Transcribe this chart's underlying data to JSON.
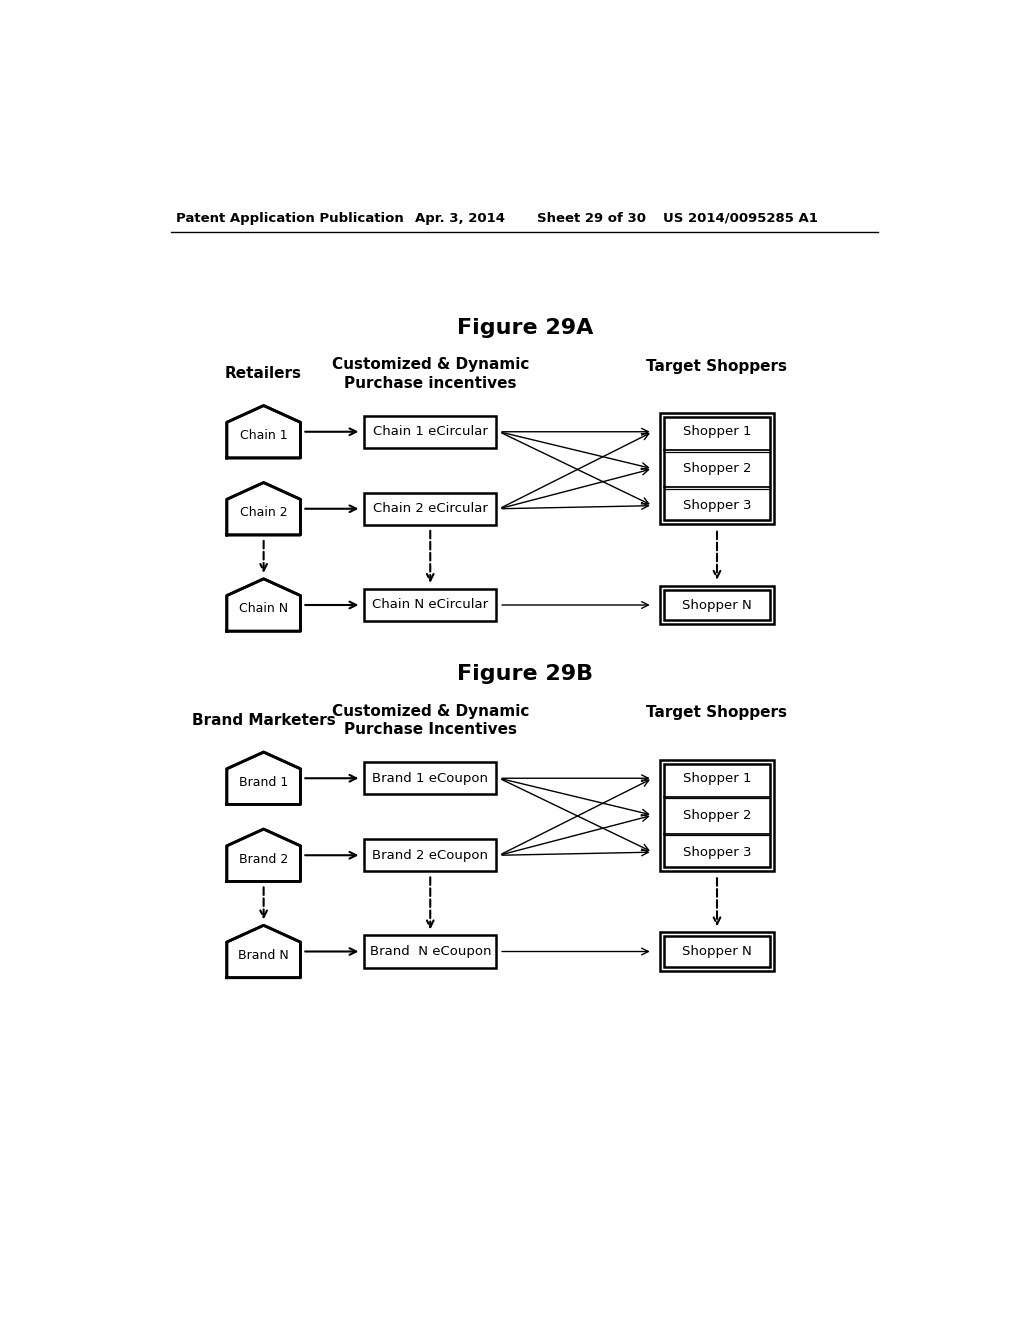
{
  "bg_color": "#ffffff",
  "header_text": "Patent Application Publication",
  "header_date": "Apr. 3, 2014",
  "header_sheet": "Sheet 29 of 30",
  "header_patent": "US 2014/0095285 A1",
  "fig_a_title": "Figure 29A",
  "fig_b_title": "Figure 29B",
  "fig_a": {
    "col1_header": "Retailers",
    "col2_header": "Customized & Dynamic\nPurchase incentives",
    "col3_header": "Target Shoppers",
    "left_shapes": [
      "Chain 1",
      "Chain 2",
      "Chain N"
    ],
    "mid_boxes": [
      "Chain 1 eCircular",
      "Chain 2 eCircular",
      "Chain N eCircular"
    ],
    "right_boxes_group": [
      "Shopper 1",
      "Shopper 2",
      "Shopper 3"
    ],
    "right_box_n": "Shopper N"
  },
  "fig_b": {
    "col1_header": "Brand Marketers",
    "col2_header": "Customized & Dynamic\nPurchase Incentives",
    "col3_header": "Target Shoppers",
    "left_shapes": [
      "Brand 1",
      "Brand 2",
      "Brand N"
    ],
    "mid_boxes": [
      "Brand 1 eCoupon",
      "Brand 2 eCoupon",
      "Brand  N eCoupon"
    ],
    "right_boxes_group": [
      "Shopper 1",
      "Shopper 2",
      "Shopper 3"
    ],
    "right_box_n": "Shopper N"
  }
}
